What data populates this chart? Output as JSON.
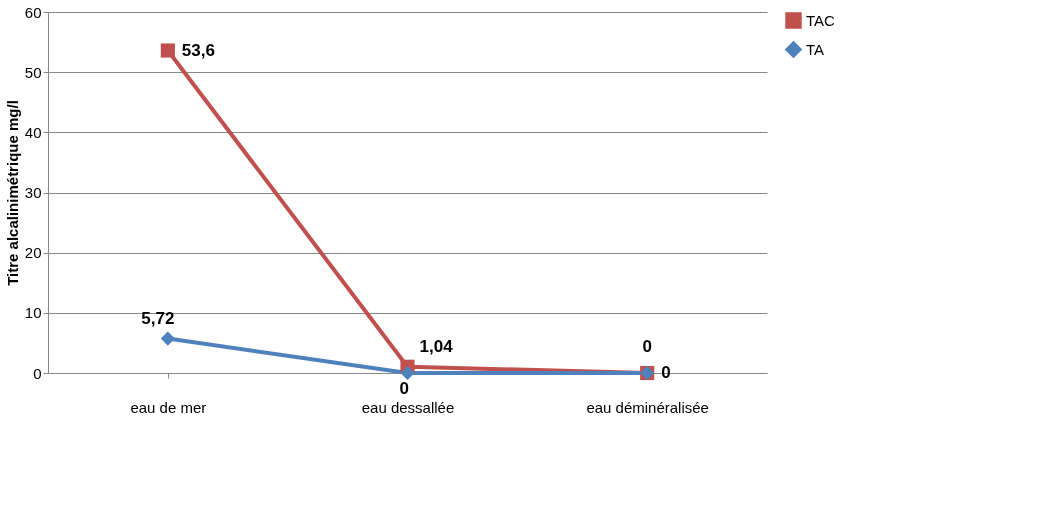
{
  "chart_data": {
    "type": "line",
    "ylabel": "Titre alcalinimétrique mg/l",
    "categories": [
      "eau de mer",
      "eau dessallée",
      "eau déminéralisée"
    ],
    "series": [
      {
        "name": "TAC",
        "color": "#c0504d",
        "marker": "square",
        "values": [
          53.6,
          1.04,
          0
        ],
        "value_labels": [
          "53,6",
          "1,04",
          "0"
        ]
      },
      {
        "name": "TA",
        "color": "#4f81bd",
        "marker": "diamond",
        "values": [
          5.72,
          0,
          0
        ],
        "value_labels": [
          "5,72",
          "0",
          "0"
        ]
      }
    ],
    "ylim": [
      0,
      60
    ],
    "yticks": [
      0,
      10,
      20,
      30,
      40,
      50,
      60
    ],
    "grid": "y",
    "legend": "right"
  }
}
